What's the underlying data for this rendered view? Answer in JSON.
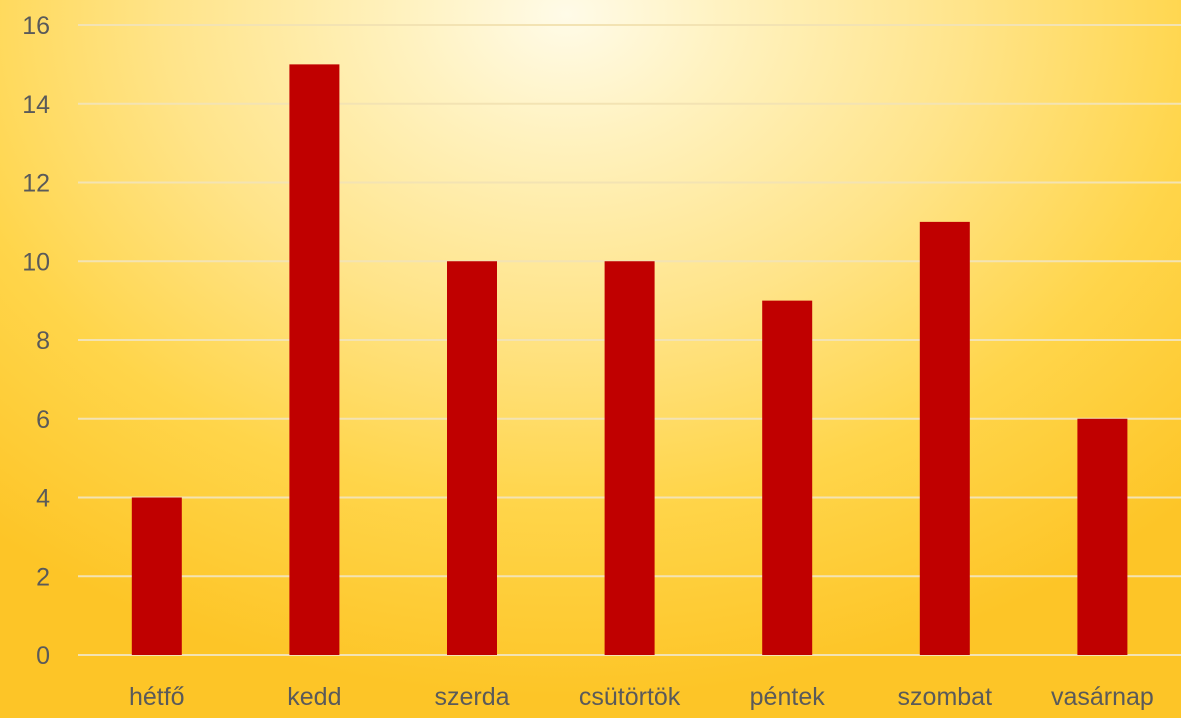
{
  "chart_data": {
    "type": "bar",
    "title": "",
    "xlabel": "",
    "ylabel": "",
    "categories": [
      "hétfő",
      "kedd",
      "szerda",
      "csütörtök",
      "péntek",
      "szombat",
      "vasárnap"
    ],
    "values": [
      4,
      15,
      10,
      10,
      9,
      11,
      6
    ],
    "ylim": [
      0,
      16
    ],
    "yticks": [
      0,
      2,
      4,
      6,
      8,
      10,
      12,
      14,
      16
    ],
    "grid": true,
    "legend": "none",
    "colors": {
      "bar": "#c00000",
      "gridline": "#f3e3b3",
      "text": "#5a5a5a"
    }
  }
}
